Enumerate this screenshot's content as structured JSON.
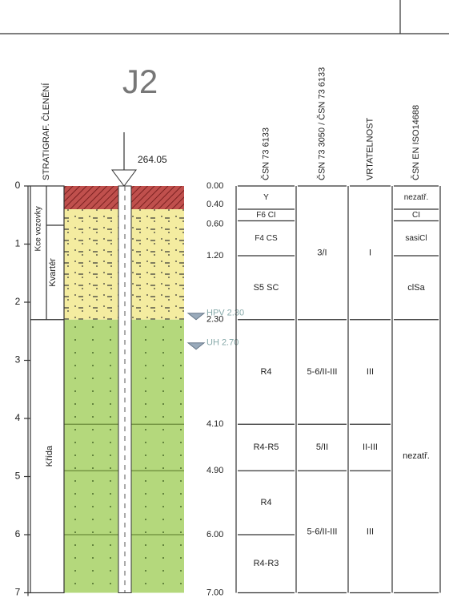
{
  "title": "J2",
  "elevation": "264.05",
  "strat_header": "STRATIGRAF. ČLENĚNÍ",
  "strat": {
    "quaternary": "Kvartér",
    "construction": "Kce vozovky",
    "cretaceous": "Křída"
  },
  "depth_axis": {
    "ticks": [
      0,
      1,
      2,
      3,
      4,
      5,
      6,
      7
    ]
  },
  "depth_labels": [
    "0.00",
    "0.40",
    "0.60",
    "1.20",
    "2.30",
    "4.10",
    "4.90",
    "6.00",
    "7.00"
  ],
  "water": [
    "HPV 2.30",
    "UH 2.70"
  ],
  "table": {
    "headers": [
      "ČSN 73 6133",
      "ČSN 73 3050 / ČSN 73 6133",
      "VRTATELNOST",
      "ČSN EN ISO14688"
    ],
    "col1": [
      "Y",
      "F6 CI",
      "F4 CS",
      "S5 SC",
      "R4",
      "R4-R5",
      "R4",
      "R4-R3"
    ],
    "col2": [
      "3/I",
      "5-6/II-III",
      "5/II",
      "5-6/II-III"
    ],
    "col3": [
      "I",
      "III",
      "II-III",
      "III"
    ],
    "col4": [
      "nezatř.",
      "CI",
      "sasiCl",
      "clSa",
      "nezatř."
    ]
  }
}
